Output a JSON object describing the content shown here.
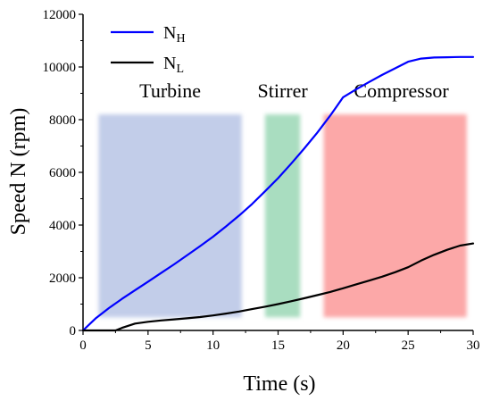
{
  "chart_data": {
    "type": "line",
    "xlabel": "Time (s)",
    "ylabel": "Speed N (rpm)",
    "xlim": [
      0,
      30
    ],
    "ylim": [
      0,
      12000
    ],
    "xticks": [
      0,
      5,
      10,
      15,
      20,
      25,
      30
    ],
    "yticks": [
      0,
      2000,
      4000,
      6000,
      8000,
      10000,
      12000
    ],
    "grid": false,
    "legend_position": "top-left",
    "series": [
      {
        "name": "N",
        "subscript": "H",
        "color": "#0000ff",
        "x": [
          0,
          1,
          2,
          3,
          4,
          5,
          6,
          7,
          8,
          9,
          10,
          11,
          12,
          13,
          14,
          15,
          16,
          17,
          18,
          19,
          19.5,
          20,
          21,
          22,
          23,
          24,
          25,
          26,
          27,
          28,
          29,
          30
        ],
        "y": [
          0,
          470,
          850,
          1200,
          1530,
          1850,
          2180,
          2510,
          2850,
          3200,
          3560,
          3950,
          4360,
          4800,
          5280,
          5780,
          6330,
          6900,
          7500,
          8150,
          8500,
          8850,
          9150,
          9430,
          9700,
          9950,
          10200,
          10320,
          10360,
          10370,
          10380,
          10380
        ]
      },
      {
        "name": "N",
        "subscript": "L",
        "color": "#000000",
        "x": [
          0,
          2.5,
          3,
          4,
          5,
          6,
          7,
          8,
          9,
          10,
          11,
          12,
          13,
          14,
          15,
          16,
          17,
          18,
          19,
          20,
          21,
          22,
          23,
          24,
          25,
          26,
          27,
          28,
          29,
          30
        ],
        "y": [
          0,
          0,
          100,
          260,
          330,
          380,
          420,
          460,
          510,
          570,
          640,
          720,
          810,
          900,
          1000,
          1110,
          1220,
          1340,
          1460,
          1600,
          1750,
          1890,
          2040,
          2210,
          2400,
          2650,
          2870,
          3060,
          3220,
          3300
        ]
      }
    ],
    "regions": [
      {
        "label": "Turbine",
        "x_start": 1.2,
        "x_end": 12.2,
        "y_start": 500,
        "y_end": 8200,
        "color": "#c2cde9"
      },
      {
        "label": "Stirrer",
        "x_start": 14.0,
        "x_end": 16.7,
        "y_start": 500,
        "y_end": 8200,
        "color": "#a9ddc0"
      },
      {
        "label": "Compressor",
        "x_start": 18.5,
        "x_end": 29.5,
        "y_start": 500,
        "y_end": 8200,
        "color": "#fca8a8"
      }
    ]
  }
}
